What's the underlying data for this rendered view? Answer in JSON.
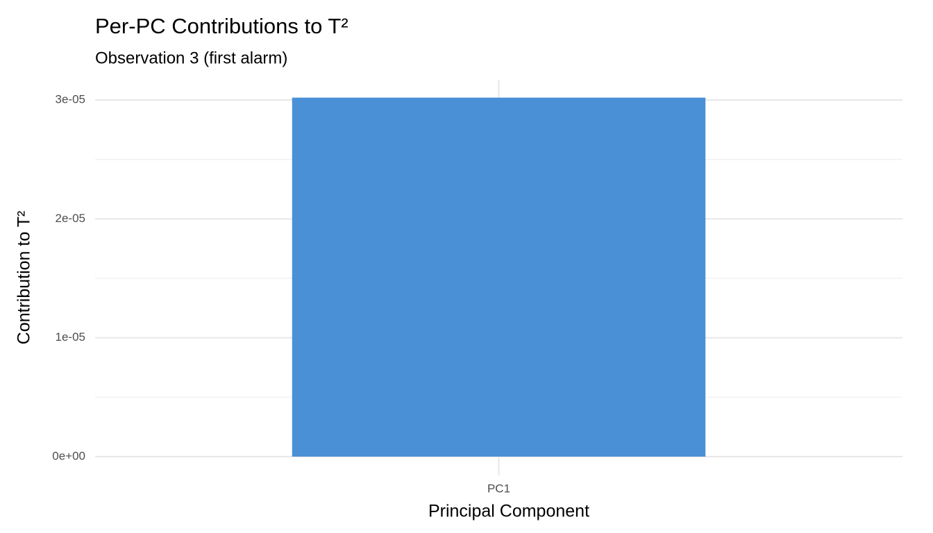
{
  "chart_data": {
    "type": "bar",
    "title": "Per-PC Contributions to T²",
    "subtitle": "Observation 3 (first alarm)",
    "x_label": "Principal Component",
    "y_label": "Contribution to T²",
    "categories": [
      "PC1"
    ],
    "values": [
      3.02e-05
    ],
    "color": "#4a90d6",
    "ylim": [
      -1.58e-06,
      3.17e-05
    ],
    "yticks": [
      {
        "value": 0,
        "label": "0e+00"
      },
      {
        "value": 1e-05,
        "label": "1e-05"
      },
      {
        "value": 2e-05,
        "label": "2e-05"
      },
      {
        "value": 3e-05,
        "label": "3e-05"
      }
    ],
    "minor_yticks": [
      5e-06,
      1.5e-05,
      2.5e-05
    ],
    "grid": true
  }
}
